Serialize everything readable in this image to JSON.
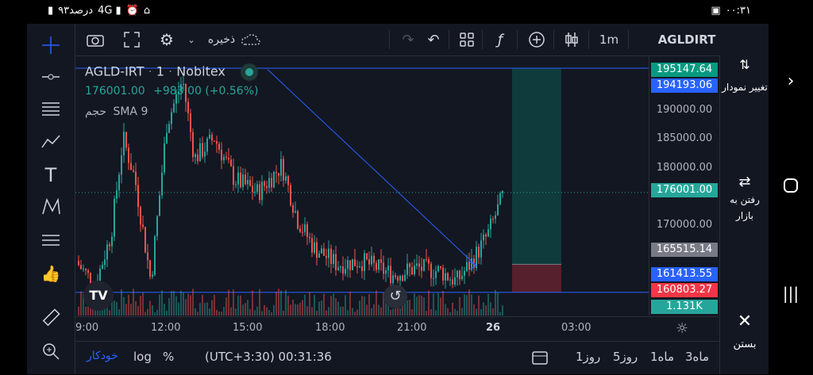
{
  "status_bar": {
    "battery": "۹۳درصد",
    "time": "۰۰:۳۱"
  },
  "toolbar": {
    "save_label": "ذخیره",
    "interval": "1m",
    "symbol": "AGLDIRT"
  },
  "legend": {
    "symbol": "AGLD-IRT",
    "interval": "1",
    "exchange": "Nobitex",
    "price": "176001.00",
    "change": "+983.00 (+0.56%)",
    "volume_label": "حجم",
    "sma": "SMA 9"
  },
  "price_axis": {
    "ticks": [
      "190000.00",
      "185000.00",
      "180000.00",
      "170000.00"
    ],
    "boxes": [
      {
        "value": "195147.64",
        "color": "#089981"
      },
      {
        "value": "194193.06",
        "color": "#2962ff"
      },
      {
        "value": "176001.00",
        "color": "#26a69a"
      },
      {
        "value": "165515.14",
        "color": "#787b86"
      },
      {
        "value": "161413.55",
        "color": "#2962ff"
      },
      {
        "value": "160803.27",
        "color": "#f23645"
      },
      {
        "value": "1.131K",
        "color": "#26a69a"
      }
    ]
  },
  "time_axis": {
    "labels": [
      "9:00",
      "12:00",
      "15:00",
      "18:00",
      "21:00",
      "26",
      "03:00"
    ]
  },
  "bottom": {
    "auto": "خودکار",
    "log": "log",
    "percent": "%",
    "timezone": "(UTC+3:30) 00:31:36",
    "ranges": [
      "1روز",
      "5روز",
      "1ماه",
      "3ماه"
    ]
  },
  "right_panel": {
    "change_chart": "تغییر نمودار",
    "go_market": "رفتن به بازار",
    "close": "بستن"
  },
  "colors": {
    "up": "#26a69a",
    "down": "#ef5350",
    "line": "#2962ff"
  }
}
